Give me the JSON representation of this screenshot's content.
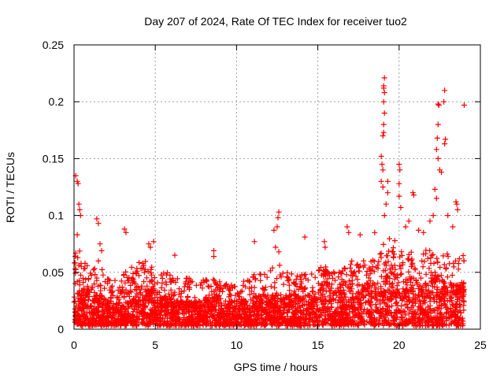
{
  "chart_data": {
    "type": "scatter",
    "title": "Day 207 of 2024, Rate Of TEC Index for receiver tuo2",
    "xlabel": "GPS time / hours",
    "ylabel": "ROTI / TECUs",
    "xlim": [
      0,
      25
    ],
    "ylim": [
      0,
      0.25
    ],
    "xticks": [
      0,
      5,
      10,
      15,
      20,
      25
    ],
    "xtick_labels": [
      "0",
      "5",
      "10",
      "15",
      "20",
      "25"
    ],
    "yticks": [
      0,
      0.05,
      0.1,
      0.15,
      0.2,
      0.25
    ],
    "ytick_labels": [
      "0",
      "0.05",
      "0.1",
      "0.15",
      "0.2",
      "0.25"
    ],
    "grid": true,
    "marker": "+",
    "color": "#ff0000",
    "data_span_hours": [
      0,
      24
    ],
    "band_envelope": {
      "hours": [
        0,
        1,
        2,
        3,
        4,
        5,
        6,
        7,
        8,
        9,
        10,
        11,
        12,
        13,
        14,
        15,
        16,
        17,
        18,
        19,
        20,
        21,
        22,
        23
      ],
      "dense_max": [
        0.035,
        0.03,
        0.025,
        0.035,
        0.035,
        0.03,
        0.025,
        0.025,
        0.03,
        0.025,
        0.025,
        0.03,
        0.03,
        0.03,
        0.03,
        0.035,
        0.035,
        0.04,
        0.045,
        0.05,
        0.045,
        0.045,
        0.045,
        0.04
      ],
      "sparse_max": [
        0.07,
        0.06,
        0.045,
        0.055,
        0.06,
        0.05,
        0.045,
        0.045,
        0.045,
        0.04,
        0.045,
        0.05,
        0.06,
        0.05,
        0.05,
        0.055,
        0.055,
        0.06,
        0.07,
        0.08,
        0.07,
        0.07,
        0.07,
        0.065
      ]
    },
    "outliers": [
      [
        0.1,
        0.135
      ],
      [
        0.2,
        0.13
      ],
      [
        0.25,
        0.128
      ],
      [
        0.3,
        0.11
      ],
      [
        0.35,
        0.105
      ],
      [
        0.4,
        0.1
      ],
      [
        0.2,
        0.083
      ],
      [
        0.1,
        0.067
      ],
      [
        1.4,
        0.097
      ],
      [
        1.5,
        0.093
      ],
      [
        1.6,
        0.075
      ],
      [
        1.7,
        0.069
      ],
      [
        3.1,
        0.088
      ],
      [
        3.2,
        0.085
      ],
      [
        4.6,
        0.075
      ],
      [
        4.7,
        0.072
      ],
      [
        4.9,
        0.077
      ],
      [
        6.2,
        0.065
      ],
      [
        8.6,
        0.069
      ],
      [
        8.6,
        0.064
      ],
      [
        11.1,
        0.077
      ],
      [
        12.3,
        0.087
      ],
      [
        12.6,
        0.103
      ],
      [
        12.55,
        0.098
      ],
      [
        12.5,
        0.09
      ],
      [
        12.4,
        0.072
      ],
      [
        12.6,
        0.068
      ],
      [
        14.2,
        0.081
      ],
      [
        15.4,
        0.077
      ],
      [
        15.45,
        0.072
      ],
      [
        16.8,
        0.09
      ],
      [
        16.9,
        0.085
      ],
      [
        17.6,
        0.083
      ],
      [
        18.5,
        0.085
      ],
      [
        18.9,
        0.152
      ],
      [
        18.95,
        0.145
      ],
      [
        19.0,
        0.14
      ],
      [
        18.9,
        0.13
      ],
      [
        19.0,
        0.125
      ],
      [
        19.1,
        0.221
      ],
      [
        19.05,
        0.214
      ],
      [
        19.05,
        0.212
      ],
      [
        19.1,
        0.208
      ],
      [
        19.05,
        0.2
      ],
      [
        19.1,
        0.19
      ],
      [
        19.05,
        0.18
      ],
      [
        19.05,
        0.173
      ],
      [
        19.0,
        0.17
      ],
      [
        19.3,
        0.13
      ],
      [
        19.3,
        0.12
      ],
      [
        19.2,
        0.11
      ],
      [
        19.1,
        0.1
      ],
      [
        20.0,
        0.145
      ],
      [
        20.05,
        0.14
      ],
      [
        20.0,
        0.128
      ],
      [
        20.0,
        0.117
      ],
      [
        20.1,
        0.107
      ],
      [
        20.4,
        0.09
      ],
      [
        20.6,
        0.095
      ],
      [
        20.85,
        0.12
      ],
      [
        20.9,
        0.118
      ],
      [
        21.2,
        0.087
      ],
      [
        21.5,
        0.085
      ],
      [
        21.9,
        0.095
      ],
      [
        22.1,
        0.1
      ],
      [
        22.2,
        0.123
      ],
      [
        22.3,
        0.115
      ],
      [
        22.4,
        0.198
      ],
      [
        22.45,
        0.197
      ],
      [
        22.4,
        0.18
      ],
      [
        22.35,
        0.168
      ],
      [
        22.3,
        0.158
      ],
      [
        22.4,
        0.15
      ],
      [
        22.5,
        0.14
      ],
      [
        22.6,
        0.138
      ],
      [
        22.8,
        0.21
      ],
      [
        22.75,
        0.2
      ],
      [
        22.85,
        0.167
      ],
      [
        22.8,
        0.163
      ],
      [
        23.0,
        0.1
      ],
      [
        23.3,
        0.09
      ],
      [
        23.5,
        0.112
      ],
      [
        23.55,
        0.11
      ],
      [
        23.6,
        0.105
      ],
      [
        24.0,
        0.197
      ]
    ]
  }
}
